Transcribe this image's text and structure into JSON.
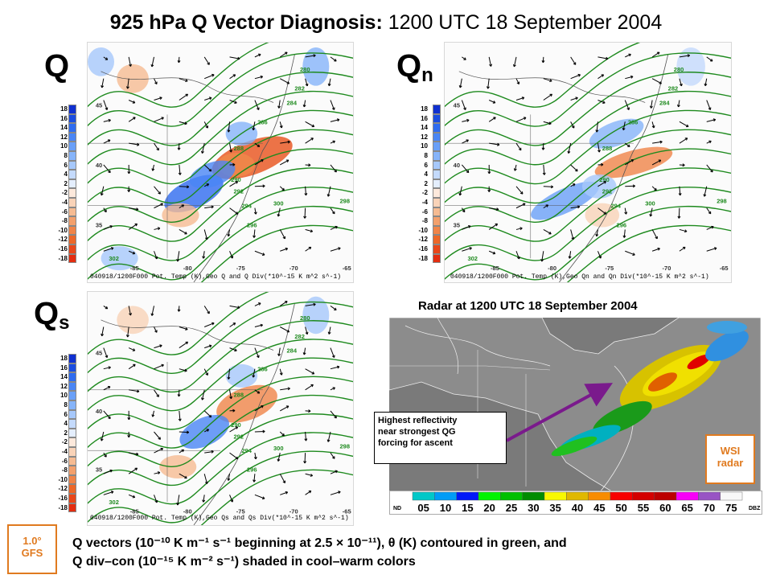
{
  "title": {
    "bold": "925 hPa Q Vector Diagnosis",
    "colon": ":",
    "rest": "1200 UTC 18 September 2004"
  },
  "panels": [
    {
      "id": "q",
      "label": "Q",
      "sub": "",
      "caption": "040918/1200F000 Pot. Temp (K),Geo Q and Q Div(*10^-15 K m^2 s^-1)"
    },
    {
      "id": "qn",
      "label": "Q",
      "sub": "n",
      "caption": "040918/1200F000 Pot. Temp (K),Geo Qn and Qn Div(*10^-15 K m^2 s^-1)"
    },
    {
      "id": "qs",
      "label": "Q",
      "sub": "s",
      "caption": "040918/1200F000 Pot. Temp (K),Geo Qs and Qs Div(*10^-15 K m^2 s^-1)"
    }
  ],
  "colorbar": {
    "ticks": [
      "18",
      "16",
      "14",
      "12",
      "10",
      "8",
      "6",
      "4",
      "2",
      "-2",
      "-4",
      "-6",
      "-8",
      "-10",
      "-12",
      "-16",
      "-18"
    ],
    "colors": [
      "#1030d0",
      "#1b4de0",
      "#2f6cf0",
      "#4a86f5",
      "#6aa0f8",
      "#86b4fa",
      "#a6c8fb",
      "#c4dafc",
      "#e4eefd",
      "#fde9dc",
      "#f9d3b8",
      "#f6bb92",
      "#f3a06c",
      "#f08448",
      "#ec6728",
      "#e8471a",
      "#e32d10"
    ]
  },
  "map": {
    "lat_labels": [
      "45",
      "40",
      "35"
    ],
    "lon_labels": [
      "-85",
      "-80",
      "-75",
      "-70",
      "-65"
    ],
    "theta_labels": [
      "280",
      "282",
      "284",
      "286",
      "288",
      "290",
      "292",
      "294",
      "296",
      "298",
      "300",
      "302"
    ]
  },
  "radar": {
    "title": "Radar at 1200 UTC 18 September 2004",
    "dbz_values": [
      "05",
      "10",
      "15",
      "20",
      "25",
      "30",
      "35",
      "40",
      "45",
      "50",
      "55",
      "60",
      "65",
      "70",
      "75"
    ],
    "dbz_colors": [
      "#00c8c8",
      "#009cf7",
      "#0018f8",
      "#00f400",
      "#00c000",
      "#008c00",
      "#f8f800",
      "#e0b800",
      "#f88c00",
      "#f80000",
      "#d40000",
      "#bc0000",
      "#f800f8",
      "#9854c4",
      "#f8f8f8"
    ],
    "nd_label": "ND",
    "unit_label": "DBZ"
  },
  "callout": {
    "line1": "Highest reflectivity",
    "line2": "near strongest QG",
    "line3": "forcing for ascent"
  },
  "wsi": {
    "line1": "WSI",
    "line2": "radar"
  },
  "gfs": {
    "line1": "1.0°",
    "line2": "GFS"
  },
  "footer": {
    "line1": "Q vectors (10⁻¹⁰ K m⁻¹ s⁻¹ beginning at 2.5 × 10⁻¹¹), θ (K) contoured in green, and",
    "line2": "Q div–con (10⁻¹⁵ K m⁻² s⁻¹) shaded in cool–warm colors"
  }
}
